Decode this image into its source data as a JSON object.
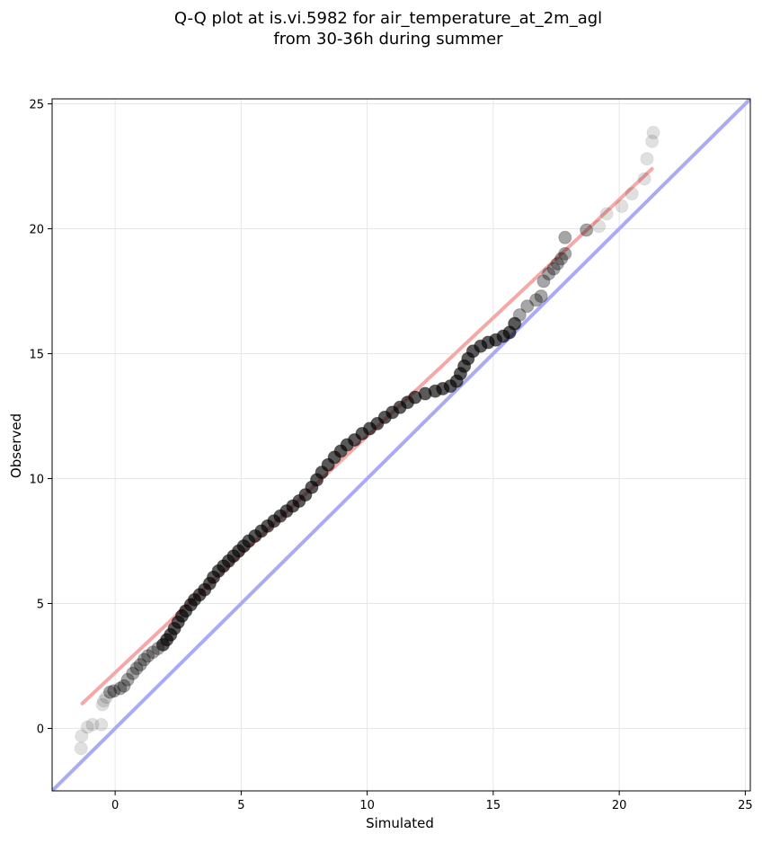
{
  "chart_data": {
    "type": "scatter",
    "title_lines": [
      "Q-Q plot at is.vi.5982 for air_temperature_at_2m_agl",
      "from 30-36h during summer"
    ],
    "xlabel": "Simulated",
    "ylabel": "Observed",
    "xlim": [
      -2.5,
      25.2
    ],
    "ylim": [
      -2.5,
      25.2
    ],
    "x_ticks": [
      0,
      5,
      10,
      15,
      20,
      25
    ],
    "y_ticks": [
      0,
      5,
      10,
      15,
      20,
      25
    ],
    "grid": true,
    "legend": "none",
    "reference_line": {
      "name": "1:1 line",
      "color": "#aaaaf5",
      "from": [
        -2.5,
        -2.5
      ],
      "to": [
        25.2,
        25.2
      ]
    },
    "fit_line": {
      "name": "fit line",
      "color": "#f5a8a8",
      "from": [
        -1.3,
        1.0
      ],
      "to": [
        21.3,
        22.4
      ]
    },
    "point_color": "#000000",
    "points": [
      [
        -1.35,
        -0.8
      ],
      [
        -1.33,
        -0.3
      ],
      [
        -1.1,
        0.05
      ],
      [
        -0.9,
        0.15
      ],
      [
        -0.55,
        0.15
      ],
      [
        -0.5,
        0.95
      ],
      [
        -0.45,
        1.1
      ],
      [
        -0.35,
        1.25
      ],
      [
        -0.2,
        1.45
      ],
      [
        -0.05,
        1.5
      ],
      [
        0.2,
        1.6
      ],
      [
        0.35,
        1.7
      ],
      [
        0.5,
        1.95
      ],
      [
        0.7,
        2.2
      ],
      [
        0.85,
        2.4
      ],
      [
        1.0,
        2.55
      ],
      [
        1.15,
        2.75
      ],
      [
        1.3,
        2.9
      ],
      [
        1.5,
        3.05
      ],
      [
        1.7,
        3.2
      ],
      [
        1.9,
        3.35
      ],
      [
        2.05,
        3.55
      ],
      [
        2.2,
        3.75
      ],
      [
        2.35,
        4.0
      ],
      [
        2.5,
        4.25
      ],
      [
        2.65,
        4.5
      ],
      [
        2.8,
        4.7
      ],
      [
        3.0,
        4.95
      ],
      [
        3.15,
        5.15
      ],
      [
        3.35,
        5.35
      ],
      [
        3.55,
        5.55
      ],
      [
        3.75,
        5.8
      ],
      [
        3.9,
        6.05
      ],
      [
        4.1,
        6.3
      ],
      [
        4.3,
        6.5
      ],
      [
        4.5,
        6.7
      ],
      [
        4.7,
        6.9
      ],
      [
        4.9,
        7.1
      ],
      [
        5.1,
        7.3
      ],
      [
        5.3,
        7.5
      ],
      [
        5.55,
        7.7
      ],
      [
        5.8,
        7.9
      ],
      [
        6.05,
        8.1
      ],
      [
        6.3,
        8.3
      ],
      [
        6.55,
        8.5
      ],
      [
        6.8,
        8.7
      ],
      [
        7.05,
        8.9
      ],
      [
        7.3,
        9.1
      ],
      [
        7.55,
        9.35
      ],
      [
        7.8,
        9.65
      ],
      [
        8.0,
        9.95
      ],
      [
        8.2,
        10.25
      ],
      [
        8.45,
        10.55
      ],
      [
        8.7,
        10.85
      ],
      [
        8.95,
        11.1
      ],
      [
        9.2,
        11.35
      ],
      [
        9.5,
        11.55
      ],
      [
        9.8,
        11.8
      ],
      [
        10.1,
        12.0
      ],
      [
        10.4,
        12.2
      ],
      [
        10.7,
        12.45
      ],
      [
        11.0,
        12.65
      ],
      [
        11.3,
        12.85
      ],
      [
        11.6,
        13.05
      ],
      [
        11.9,
        13.25
      ],
      [
        12.3,
        13.4
      ],
      [
        12.7,
        13.5
      ],
      [
        13.0,
        13.6
      ],
      [
        13.3,
        13.7
      ],
      [
        13.55,
        13.9
      ],
      [
        13.7,
        14.2
      ],
      [
        13.85,
        14.5
      ],
      [
        14.0,
        14.8
      ],
      [
        14.2,
        15.1
      ],
      [
        14.5,
        15.3
      ],
      [
        14.8,
        15.45
      ],
      [
        15.1,
        15.55
      ],
      [
        15.4,
        15.7
      ],
      [
        15.65,
        15.85
      ],
      [
        15.85,
        16.2
      ],
      [
        16.05,
        16.55
      ],
      [
        16.35,
        16.9
      ],
      [
        16.7,
        17.15
      ],
      [
        16.9,
        17.3
      ],
      [
        17.0,
        17.9
      ],
      [
        17.2,
        18.2
      ],
      [
        17.4,
        18.4
      ],
      [
        17.55,
        18.6
      ],
      [
        17.7,
        18.8
      ],
      [
        17.85,
        19.0
      ],
      [
        17.85,
        19.65
      ],
      [
        18.7,
        19.95
      ],
      [
        19.2,
        20.1
      ],
      [
        19.5,
        20.6
      ],
      [
        20.1,
        20.9
      ],
      [
        20.5,
        21.4
      ],
      [
        21.0,
        22.0
      ],
      [
        21.1,
        22.8
      ],
      [
        21.3,
        23.5
      ],
      [
        21.35,
        23.85
      ]
    ]
  }
}
